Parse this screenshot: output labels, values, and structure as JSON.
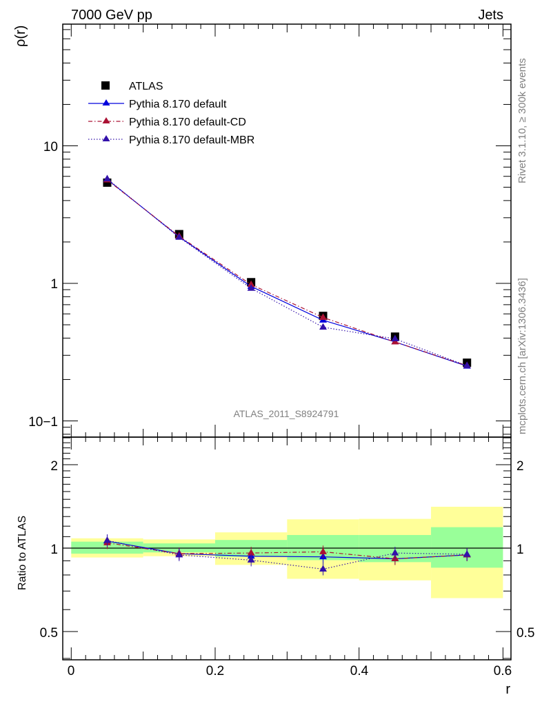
{
  "header": {
    "left": "7000 GeV pp",
    "right": "Jets"
  },
  "side_text": {
    "upper": "Rivet 3.1.10, ≥ 300k events",
    "lower": "mcplots.cern.ch [arXiv:1306.3436]"
  },
  "analysis_label": "ATLAS_2011_S8924791",
  "legend": {
    "items": [
      {
        "label": "ATLAS",
        "color": "#000000",
        "marker": "square",
        "line": "none"
      },
      {
        "label": "Pythia 8.170 default",
        "color": "#0000dd",
        "marker": "triangle",
        "line": "solid"
      },
      {
        "label": "Pythia 8.170 default-CD",
        "color": "#aa1133",
        "marker": "triangle",
        "line": "dashdot"
      },
      {
        "label": "Pythia 8.170 default-MBR",
        "color": "#3311aa",
        "marker": "triangle",
        "line": "dotted"
      }
    ]
  },
  "chart_data": [
    {
      "type": "line",
      "panel": "main",
      "ylabel": "ρ(r)",
      "yscale": "log",
      "ylim": [
        0.08,
        100
      ],
      "xlim": [
        -0.015,
        0.61
      ],
      "y_tick_labels": [
        "10",
        "1",
        "10−1"
      ],
      "x": [
        0.05,
        0.15,
        0.25,
        0.35,
        0.45,
        0.55
      ],
      "series": [
        {
          "name": "ATLAS",
          "values": [
            5.4,
            2.28,
            1.02,
            0.58,
            0.41,
            0.265
          ]
        },
        {
          "name": "Pythia 8.170 default",
          "values": [
            5.7,
            2.18,
            0.95,
            0.54,
            0.375,
            0.25
          ]
        },
        {
          "name": "Pythia 8.170 default-CD",
          "values": [
            5.65,
            2.2,
            0.98,
            0.565,
            0.375,
            0.252
          ]
        },
        {
          "name": "Pythia 8.170 default-MBR",
          "values": [
            5.75,
            2.16,
            0.92,
            0.48,
            0.395,
            0.252
          ]
        }
      ]
    },
    {
      "type": "line",
      "panel": "ratio",
      "ylabel": "Ratio to ATLAS",
      "xlabel": "r",
      "yscale": "log",
      "ylim": [
        0.4,
        2.5
      ],
      "xlim": [
        -0.015,
        0.61
      ],
      "x_ticks": [
        0,
        0.2,
        0.4,
        0.6
      ],
      "x_tick_labels": [
        "0",
        "0.2",
        "0.4",
        "0.6"
      ],
      "y_ticks": [
        0.5,
        1,
        2
      ],
      "y_tick_labels": [
        "0.5",
        "1",
        "2"
      ],
      "x": [
        0.05,
        0.15,
        0.25,
        0.35,
        0.45,
        0.55
      ],
      "bin_edges": [
        0.0,
        0.1,
        0.2,
        0.3,
        0.4,
        0.5,
        0.6
      ],
      "band_inner": [
        [
          0.955,
          1.055
        ],
        [
          0.965,
          1.04
        ],
        [
          0.93,
          1.07
        ],
        [
          0.905,
          1.115
        ],
        [
          0.89,
          1.115
        ],
        [
          0.85,
          1.19
        ]
      ],
      "band_outer": [
        [
          0.925,
          1.085
        ],
        [
          0.935,
          1.075
        ],
        [
          0.87,
          1.14
        ],
        [
          0.775,
          1.27
        ],
        [
          0.765,
          1.275
        ],
        [
          0.66,
          1.41
        ]
      ],
      "series": [
        {
          "name": "Pythia 8.170 default",
          "values": [
            1.06,
            0.955,
            0.935,
            0.93,
            0.915,
            0.945
          ]
        },
        {
          "name": "Pythia 8.170 default-CD",
          "values": [
            1.045,
            0.955,
            0.96,
            0.97,
            0.915,
            0.945
          ]
        },
        {
          "name": "Pythia 8.170 default-MBR",
          "values": [
            1.065,
            0.945,
            0.905,
            0.84,
            0.96,
            0.95
          ]
        }
      ]
    }
  ]
}
